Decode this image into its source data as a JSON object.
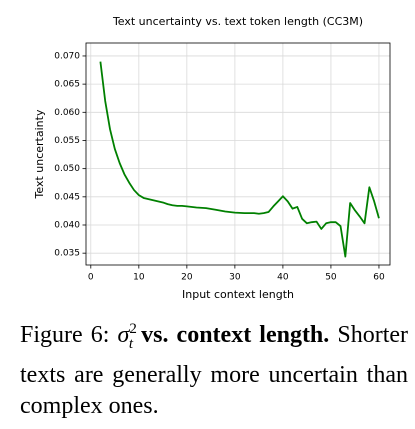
{
  "chart_data": {
    "type": "line",
    "title": "Text uncertainty vs. text token length (CC3M)",
    "x_label": "Input context length",
    "y_label": "Text uncertainty",
    "x": [
      2,
      3,
      4,
      5,
      6,
      7,
      8,
      9,
      10,
      11,
      12,
      13,
      14,
      15,
      16,
      17,
      18,
      19,
      20,
      22,
      24,
      26,
      28,
      30,
      32,
      34,
      35,
      36,
      37,
      38,
      39,
      40,
      41,
      42,
      43,
      44,
      45,
      46,
      47,
      48,
      49,
      50,
      51,
      52,
      53,
      54,
      55,
      56,
      57,
      58,
      59,
      60
    ],
    "values": [
      0.069,
      0.062,
      0.057,
      0.0535,
      0.051,
      0.049,
      0.0475,
      0.0462,
      0.0453,
      0.0448,
      0.0446,
      0.0444,
      0.0442,
      0.044,
      0.0437,
      0.0435,
      0.0434,
      0.0434,
      0.0433,
      0.0431,
      0.043,
      0.0427,
      0.0424,
      0.0422,
      0.0421,
      0.0421,
      0.042,
      0.0421,
      0.0423,
      0.0433,
      0.0442,
      0.0451,
      0.0442,
      0.0429,
      0.0432,
      0.0411,
      0.0403,
      0.0405,
      0.0406,
      0.0393,
      0.0403,
      0.0405,
      0.0405,
      0.0398,
      0.0344,
      0.0439,
      0.0426,
      0.0415,
      0.0403,
      0.0467,
      0.0442,
      0.0412
    ],
    "color": "#008000",
    "xlim": [
      -1,
      62.3
    ],
    "xticks": [
      0,
      10,
      20,
      30,
      40,
      50,
      60
    ],
    "ylim": [
      0.0329,
      0.0723
    ],
    "yticks": [
      0.035,
      {
        "value": 0.04,
        "label": "0.040"
      },
      0.045,
      {
        "value": 0.05,
        "label": "0.050"
      },
      0.055,
      {
        "value": 0.06,
        "label": "0.060"
      },
      0.065,
      {
        "value": 0.07,
        "label": "0.070"
      }
    ],
    "grid": true
  },
  "caption": {
    "figure_label": "Figure 6:",
    "symbol": "σ",
    "symbol_sub": "t",
    "symbol_sup": "2",
    "bold": "vs. context length.",
    "text": "Shorter texts are generally more uncertain than complex ones."
  }
}
